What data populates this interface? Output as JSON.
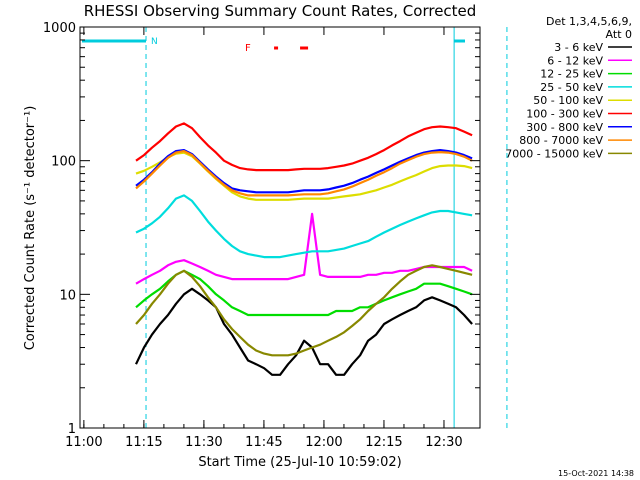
{
  "chart_data": {
    "type": "line",
    "title": "RHESSI Observing Summary Count Rates, Corrected",
    "xlabel": "Start Time (25-Jul-10 10:59:02)",
    "ylabel": "Corrected Count Rate (s⁻¹ detector⁻¹)",
    "y_scale": "log",
    "ylim": [
      1,
      1000
    ],
    "xlim": [
      "10:59:02",
      "12:39"
    ],
    "x_ticks": [
      "11:00",
      "11:15",
      "11:30",
      "11:45",
      "12:00",
      "12:15",
      "12:30"
    ],
    "y_ticks": [
      "1",
      "10",
      "100",
      "1000"
    ],
    "grid": false,
    "legend_header": [
      "Det 1,3,4,5,6,9,",
      "Att 0"
    ],
    "legend_position": "right",
    "timestamp": "15-Oct-2021 14:38",
    "annotations": {
      "night_label": "N",
      "flare_label": "F",
      "night_lines_min": [
        16.5,
        93.5,
        106.7
      ],
      "flare_segments_min": [
        [
          48.5,
          49.5
        ],
        [
          55,
          57
        ]
      ]
    },
    "series": [
      {
        "name": "3 - 6 keV",
        "color": "#000000",
        "x": [
          14,
          16,
          18,
          20,
          22,
          24,
          26,
          28,
          30,
          32,
          34,
          36,
          38,
          40,
          42,
          44,
          46,
          48,
          50,
          52,
          54,
          56,
          58,
          60,
          62,
          64,
          66,
          68,
          70,
          72,
          74,
          76,
          78,
          80,
          82,
          84,
          86,
          88,
          90,
          92,
          94,
          96,
          98
        ],
        "y": [
          3,
          4,
          5,
          6,
          7,
          8.5,
          10,
          11,
          10,
          9,
          8,
          6,
          5,
          4,
          3.2,
          3,
          2.8,
          2.5,
          2.5,
          3,
          3.5,
          4.5,
          4,
          3,
          3,
          2.5,
          2.5,
          3,
          3.5,
          4.5,
          5,
          6,
          6.5,
          7,
          7.5,
          8,
          9,
          9.5,
          9,
          8.5,
          8,
          7,
          6
        ]
      },
      {
        "name": "6 - 12 keV",
        "color": "#ff00ff",
        "x": [
          14,
          16,
          18,
          20,
          22,
          24,
          26,
          28,
          30,
          32,
          34,
          36,
          38,
          40,
          42,
          44,
          46,
          48,
          50,
          52,
          54,
          56,
          58,
          60,
          62,
          64,
          66,
          68,
          70,
          72,
          74,
          76,
          78,
          80,
          82,
          84,
          86,
          88,
          90,
          92,
          94,
          96,
          98
        ],
        "y": [
          12,
          13,
          14,
          15,
          16.5,
          17.5,
          18,
          17,
          16,
          15,
          14,
          13.5,
          13,
          13,
          13,
          13,
          13,
          13,
          13,
          13,
          13.5,
          14,
          40,
          14,
          13.5,
          13.5,
          13.5,
          13.5,
          13.5,
          14,
          14,
          14.5,
          14.5,
          15,
          15,
          15.5,
          16,
          16,
          16,
          16,
          16,
          16,
          15
        ]
      },
      {
        "name": "12 - 25 keV",
        "color": "#00dd00",
        "x": [
          14,
          16,
          18,
          20,
          22,
          24,
          26,
          28,
          30,
          32,
          34,
          36,
          38,
          40,
          42,
          44,
          46,
          48,
          50,
          52,
          54,
          56,
          58,
          60,
          62,
          64,
          66,
          68,
          70,
          72,
          74,
          76,
          78,
          80,
          82,
          84,
          86,
          88,
          90,
          92,
          94,
          96,
          98
        ],
        "y": [
          8,
          9,
          10,
          11,
          12.5,
          14,
          15,
          14,
          13,
          11.5,
          10,
          9,
          8,
          7.5,
          7,
          7,
          7,
          7,
          7,
          7,
          7,
          7,
          7,
          7,
          7,
          7.5,
          7.5,
          7.5,
          8,
          8,
          8.5,
          9,
          9.5,
          10,
          10.5,
          11,
          12,
          12,
          12,
          11.5,
          11,
          10.5,
          10
        ]
      },
      {
        "name": "25 - 50 keV",
        "color": "#00dddd",
        "x": [
          14,
          16,
          18,
          20,
          22,
          24,
          26,
          28,
          30,
          32,
          34,
          36,
          38,
          40,
          42,
          44,
          46,
          48,
          50,
          52,
          54,
          56,
          58,
          60,
          62,
          64,
          66,
          68,
          70,
          72,
          74,
          76,
          78,
          80,
          82,
          84,
          86,
          88,
          90,
          92,
          94,
          96,
          98
        ],
        "y": [
          29,
          31,
          34,
          38,
          44,
          52,
          55,
          50,
          42,
          35,
          30,
          26,
          23,
          21,
          20,
          19.5,
          19,
          19,
          19,
          19.5,
          20,
          20.5,
          21,
          21,
          21,
          21.5,
          22,
          23,
          24,
          25,
          27,
          29,
          31,
          33,
          35,
          37,
          39,
          41,
          42,
          42,
          41,
          40,
          39
        ]
      },
      {
        "name": "50 - 100 keV",
        "color": "#dddd00",
        "x": [
          14,
          16,
          18,
          20,
          22,
          24,
          26,
          28,
          30,
          32,
          34,
          36,
          38,
          40,
          42,
          44,
          46,
          48,
          50,
          52,
          54,
          56,
          58,
          60,
          62,
          64,
          66,
          68,
          70,
          72,
          74,
          76,
          78,
          80,
          82,
          84,
          86,
          88,
          90,
          92,
          94,
          96,
          98
        ],
        "y": [
          80,
          84,
          90,
          97,
          106,
          113,
          115,
          108,
          95,
          83,
          73,
          65,
          58,
          54,
          52,
          51,
          51,
          51,
          51,
          51,
          51.5,
          52,
          52,
          52,
          52,
          53,
          54,
          55,
          56,
          58,
          60,
          63,
          66,
          70,
          74,
          78,
          83,
          88,
          91,
          92,
          92,
          91,
          88
        ]
      },
      {
        "name": "100 - 300 keV",
        "color": "#ff0000",
        "x": [
          14,
          16,
          18,
          20,
          22,
          24,
          26,
          28,
          30,
          32,
          34,
          36,
          38,
          40,
          42,
          44,
          46,
          48,
          50,
          52,
          54,
          56,
          58,
          60,
          62,
          64,
          66,
          68,
          70,
          72,
          74,
          76,
          78,
          80,
          82,
          84,
          86,
          88,
          90,
          92,
          94,
          96,
          98
        ],
        "y": [
          100,
          110,
          125,
          140,
          160,
          180,
          190,
          175,
          150,
          130,
          115,
          100,
          93,
          88,
          86,
          85,
          85,
          85,
          85,
          85,
          86,
          87,
          87,
          87,
          88,
          90,
          92,
          95,
          100,
          105,
          112,
          120,
          130,
          140,
          152,
          162,
          172,
          178,
          180,
          178,
          175,
          165,
          155
        ]
      },
      {
        "name": "300 - 800 keV",
        "color": "#0000ff",
        "x": [
          14,
          16,
          18,
          20,
          22,
          24,
          26,
          28,
          30,
          32,
          34,
          36,
          38,
          40,
          42,
          44,
          46,
          48,
          50,
          52,
          54,
          56,
          58,
          60,
          62,
          64,
          66,
          68,
          70,
          72,
          74,
          76,
          78,
          80,
          82,
          84,
          86,
          88,
          90,
          92,
          94,
          96,
          98
        ],
        "y": [
          65,
          72,
          82,
          95,
          108,
          118,
          120,
          112,
          98,
          86,
          76,
          68,
          62,
          60,
          59,
          58,
          58,
          58,
          58,
          58,
          59,
          60,
          60,
          60,
          61,
          63,
          65,
          68,
          72,
          76,
          81,
          86,
          92,
          98,
          104,
          110,
          115,
          118,
          120,
          118,
          115,
          110,
          104
        ]
      },
      {
        "name": "800 - 7000 keV",
        "color": "#ff8800",
        "x": [
          14,
          16,
          18,
          20,
          22,
          24,
          26,
          28,
          30,
          32,
          34,
          36,
          38,
          40,
          42,
          44,
          46,
          48,
          50,
          52,
          54,
          56,
          58,
          60,
          62,
          64,
          66,
          68,
          70,
          72,
          74,
          76,
          78,
          80,
          82,
          84,
          86,
          88,
          90,
          92,
          94,
          96,
          98
        ],
        "y": [
          62,
          70,
          80,
          92,
          105,
          115,
          118,
          110,
          96,
          84,
          74,
          66,
          60,
          57,
          55,
          55,
          55,
          55,
          55,
          55,
          55.5,
          56,
          56,
          56,
          57,
          59,
          61,
          64,
          68,
          72,
          77,
          82,
          88,
          95,
          101,
          107,
          112,
          115,
          116,
          115,
          112,
          107,
          100
        ]
      },
      {
        "name": "7000 - 15000 keV",
        "color": "#888800",
        "x": [
          14,
          16,
          18,
          20,
          22,
          24,
          26,
          28,
          30,
          32,
          34,
          36,
          38,
          40,
          42,
          44,
          46,
          48,
          50,
          52,
          54,
          56,
          58,
          60,
          62,
          64,
          66,
          68,
          70,
          72,
          74,
          76,
          78,
          80,
          82,
          84,
          86,
          88,
          90,
          92,
          94,
          96,
          98
        ],
        "y": [
          6,
          7,
          8.5,
          10,
          12,
          14,
          15,
          13.5,
          11.5,
          9.5,
          8,
          6.5,
          5.5,
          4.8,
          4.2,
          3.8,
          3.6,
          3.5,
          3.5,
          3.5,
          3.6,
          3.8,
          4,
          4.2,
          4.5,
          4.8,
          5.2,
          5.8,
          6.5,
          7.5,
          8.5,
          9.5,
          11,
          12.5,
          14,
          15,
          16,
          16.5,
          16,
          15.5,
          15,
          14.5,
          14
        ]
      }
    ]
  }
}
